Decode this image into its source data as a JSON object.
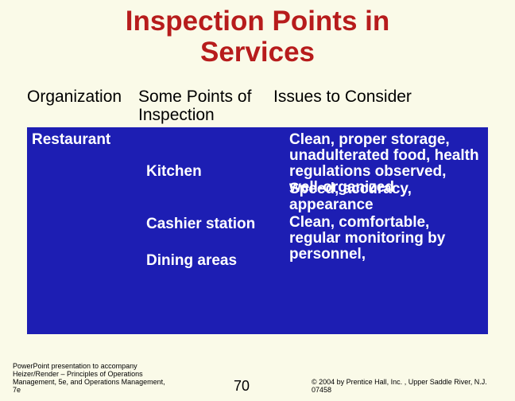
{
  "title_line1": "Inspection Points in",
  "title_line2": "Services",
  "headers": {
    "organization": "Organization",
    "points": "Some Points of Inspection",
    "issues": "Issues to Consider"
  },
  "organization_row": "Restaurant",
  "points": {
    "p1": "Kitchen",
    "p2": "Cashier station",
    "p3": "Dining areas"
  },
  "issues": {
    "i1": "Clean, proper storage, unadulterated food, health regulations observed, well-organized",
    "i2": "Speed, accuracy, appearance",
    "i3": "Clean, comfortable, regular monitoring by personnel,"
  },
  "footer": {
    "left": "PowerPoint presentation to accompany Heizer/Render – Principles of Operations Management, 5e, and Operations Management, 7e",
    "page": "70",
    "right": "© 2004 by Prentice Hall, Inc. ,  Upper Saddle River, N.J. 07458"
  },
  "colors": {
    "background": "#fafae8",
    "title": "#b71c1c",
    "panel": "#1d1eb3",
    "panel_text": "#ffffff",
    "header_text": "#000000"
  },
  "fonts": {
    "title_size_pt": 26,
    "header_size_pt": 16,
    "body_size_pt": 14,
    "footer_size_pt": 7
  }
}
